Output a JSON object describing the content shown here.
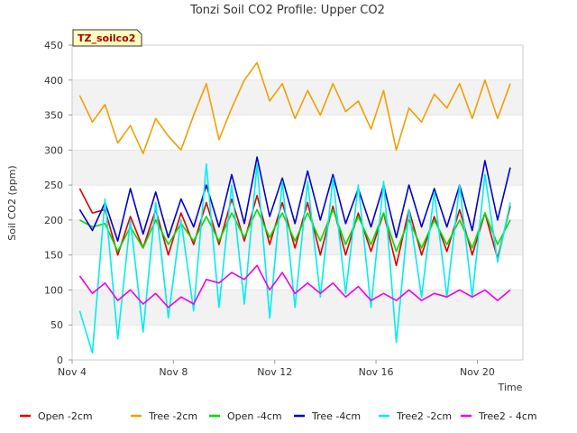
{
  "chart_data": {
    "type": "line",
    "title": "Tonzi Soil CO2 Profile: Upper CO2",
    "badge": "TZ_soilco2",
    "xlabel": "Time",
    "ylabel": "Soil CO2 (ppm)",
    "xlim": [
      4,
      21.8
    ],
    "ylim": [
      0,
      450
    ],
    "yticks": [
      0,
      50,
      100,
      150,
      200,
      250,
      300,
      350,
      400,
      450
    ],
    "xticks": [
      {
        "v": 4,
        "label": "Nov 4"
      },
      {
        "v": 8,
        "label": "Nov 8"
      },
      {
        "v": 12,
        "label": "Nov 12"
      },
      {
        "v": 16,
        "label": "Nov 16"
      },
      {
        "v": 20,
        "label": "Nov 20"
      }
    ],
    "grid": "horizontal bands",
    "legend_position": "bottom",
    "x": [
      4.3,
      4.8,
      5.3,
      5.8,
      6.3,
      6.8,
      7.3,
      7.8,
      8.3,
      8.8,
      9.3,
      9.8,
      10.3,
      10.8,
      11.3,
      11.8,
      12.3,
      12.8,
      13.3,
      13.8,
      14.3,
      14.8,
      15.3,
      15.8,
      16.3,
      16.8,
      17.3,
      17.8,
      18.3,
      18.8,
      19.3,
      19.8,
      20.3,
      20.8,
      21.3
    ],
    "series": [
      {
        "name": "Open -2cm",
        "color": "#e00000",
        "values": [
          245,
          210,
          215,
          150,
          205,
          160,
          215,
          150,
          210,
          165,
          225,
          165,
          230,
          170,
          235,
          165,
          225,
          160,
          225,
          150,
          220,
          150,
          210,
          155,
          210,
          135,
          215,
          150,
          205,
          155,
          215,
          150,
          210,
          145,
          220
        ]
      },
      {
        "name": "Tree -2cm",
        "color": "#f0a000",
        "values": [
          378,
          340,
          365,
          310,
          335,
          295,
          345,
          320,
          300,
          350,
          395,
          315,
          360,
          400,
          425,
          370,
          395,
          345,
          385,
          350,
          395,
          355,
          370,
          330,
          385,
          300,
          360,
          340,
          380,
          360,
          395,
          345,
          400,
          345,
          395
        ]
      },
      {
        "name": "Open -4cm",
        "color": "#00dd00",
        "values": [
          200,
          190,
          195,
          155,
          190,
          160,
          200,
          165,
          195,
          170,
          205,
          170,
          210,
          175,
          215,
          175,
          210,
          170,
          210,
          170,
          215,
          165,
          205,
          165,
          210,
          155,
          200,
          160,
          200,
          165,
          200,
          160,
          210,
          165,
          200
        ]
      },
      {
        "name": "Tree -4cm",
        "color": "#0000cc",
        "values": [
          215,
          185,
          225,
          170,
          245,
          180,
          240,
          175,
          230,
          190,
          250,
          190,
          265,
          195,
          290,
          205,
          260,
          195,
          270,
          200,
          265,
          195,
          245,
          190,
          250,
          175,
          250,
          190,
          245,
          190,
          250,
          185,
          285,
          200,
          275
        ]
      },
      {
        "name": "Tree2 -2cm",
        "color": "#00eeee",
        "values": [
          70,
          10,
          230,
          30,
          200,
          40,
          225,
          60,
          200,
          70,
          280,
          75,
          250,
          80,
          280,
          60,
          255,
          75,
          255,
          90,
          260,
          95,
          250,
          75,
          255,
          25,
          215,
          90,
          240,
          90,
          250,
          90,
          265,
          140,
          225
        ]
      },
      {
        "name": "Tree2 - 4cm",
        "color": "#ee00ee",
        "values": [
          120,
          95,
          110,
          85,
          100,
          80,
          95,
          75,
          90,
          80,
          115,
          110,
          125,
          115,
          135,
          100,
          125,
          95,
          110,
          95,
          110,
          90,
          105,
          85,
          95,
          85,
          100,
          85,
          95,
          90,
          100,
          90,
          100,
          85,
          100
        ]
      }
    ]
  }
}
